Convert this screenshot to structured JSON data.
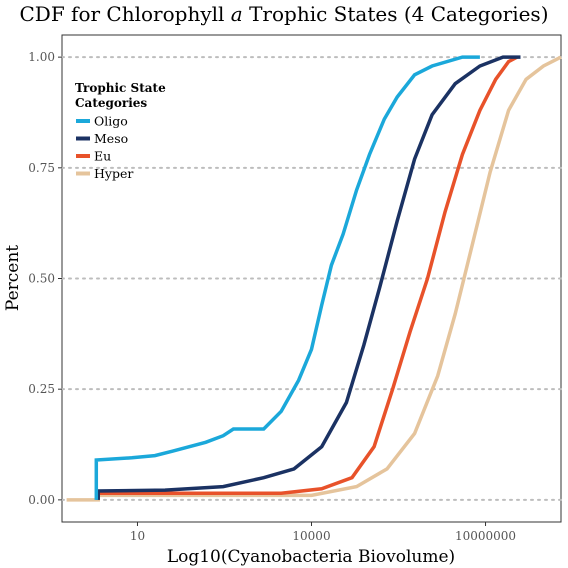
{
  "chart_data": {
    "type": "line",
    "title": {
      "prefix": "CDF for Chlorophyll ",
      "italic": "a",
      "suffix": " Trophic States (4 Categories)"
    },
    "xlabel": "Log10(Cyanobacteria Biovolume)",
    "ylabel": "Percent",
    "x_scale": "log10",
    "xlim": [
      0.5,
      200000000
    ],
    "ylim": [
      -0.05,
      1.05
    ],
    "x_ticks": [
      10,
      10000,
      10000000
    ],
    "x_tick_labels": [
      "10",
      "10000",
      "10000000"
    ],
    "y_ticks": [
      0,
      0.25,
      0.5,
      0.75,
      1
    ],
    "y_tick_labels": [
      "0.00",
      "0.25",
      "0.50",
      "0.75",
      "1.00"
    ],
    "grid": "horizontal dotted",
    "legend": {
      "title": "Trophic State\nCategories",
      "placement": "top-left inside",
      "entries": [
        "Oligo",
        "Meso",
        "Eu",
        "Hyper"
      ]
    },
    "series": [
      {
        "name": "Oligo",
        "color": "#1ba8da",
        "points": [
          [
            1.95,
            0
          ],
          [
            1.95,
            0.09
          ],
          [
            8,
            0.095
          ],
          [
            20,
            0.1
          ],
          [
            40,
            0.11
          ],
          [
            150,
            0.13
          ],
          [
            300,
            0.145
          ],
          [
            450,
            0.16
          ],
          [
            1500,
            0.16
          ],
          [
            3000,
            0.2
          ],
          [
            6000,
            0.27
          ],
          [
            10000,
            0.34
          ],
          [
            15000,
            0.44
          ],
          [
            22000,
            0.53
          ],
          [
            35000,
            0.6
          ],
          [
            60000,
            0.7
          ],
          [
            100000,
            0.78
          ],
          [
            180000,
            0.86
          ],
          [
            300000,
            0.91
          ],
          [
            600000,
            0.96
          ],
          [
            1200000,
            0.98
          ],
          [
            4000000,
            1.0
          ],
          [
            8000000,
            1.0
          ]
        ]
      },
      {
        "name": "Meso",
        "color": "#1b3263",
        "points": [
          [
            2.1,
            0
          ],
          [
            2.1,
            0.02
          ],
          [
            30,
            0.022
          ],
          [
            300,
            0.03
          ],
          [
            1500,
            0.05
          ],
          [
            5000,
            0.07
          ],
          [
            15000,
            0.12
          ],
          [
            40000,
            0.22
          ],
          [
            80000,
            0.35
          ],
          [
            150000,
            0.48
          ],
          [
            300000,
            0.63
          ],
          [
            600000,
            0.77
          ],
          [
            1200000,
            0.87
          ],
          [
            3000000,
            0.94
          ],
          [
            8000000,
            0.98
          ],
          [
            20000000,
            1.0
          ],
          [
            40000000,
            1.0
          ]
        ]
      },
      {
        "name": "Eu",
        "color": "#e8522a",
        "points": [
          [
            2.1,
            0
          ],
          [
            2.1,
            0.015
          ],
          [
            3000,
            0.015
          ],
          [
            15000,
            0.025
          ],
          [
            50000,
            0.05
          ],
          [
            120000,
            0.12
          ],
          [
            250000,
            0.25
          ],
          [
            500000,
            0.38
          ],
          [
            1000000,
            0.5
          ],
          [
            2000000,
            0.65
          ],
          [
            4000000,
            0.78
          ],
          [
            8000000,
            0.88
          ],
          [
            15000000,
            0.95
          ],
          [
            25000000,
            0.99
          ],
          [
            35000000,
            1.0
          ]
        ]
      },
      {
        "name": "Hyper",
        "color": "#e5c49c",
        "points": [
          [
            0.6,
            0
          ],
          [
            2.1,
            0
          ],
          [
            2.1,
            0.01
          ],
          [
            10000,
            0.01
          ],
          [
            60000,
            0.03
          ],
          [
            200000,
            0.07
          ],
          [
            600000,
            0.15
          ],
          [
            1500000,
            0.28
          ],
          [
            3000000,
            0.42
          ],
          [
            6000000,
            0.58
          ],
          [
            12000000,
            0.74
          ],
          [
            25000000,
            0.88
          ],
          [
            50000000,
            0.95
          ],
          [
            100000000,
            0.98
          ],
          [
            200000000,
            1.0
          ]
        ]
      }
    ]
  }
}
